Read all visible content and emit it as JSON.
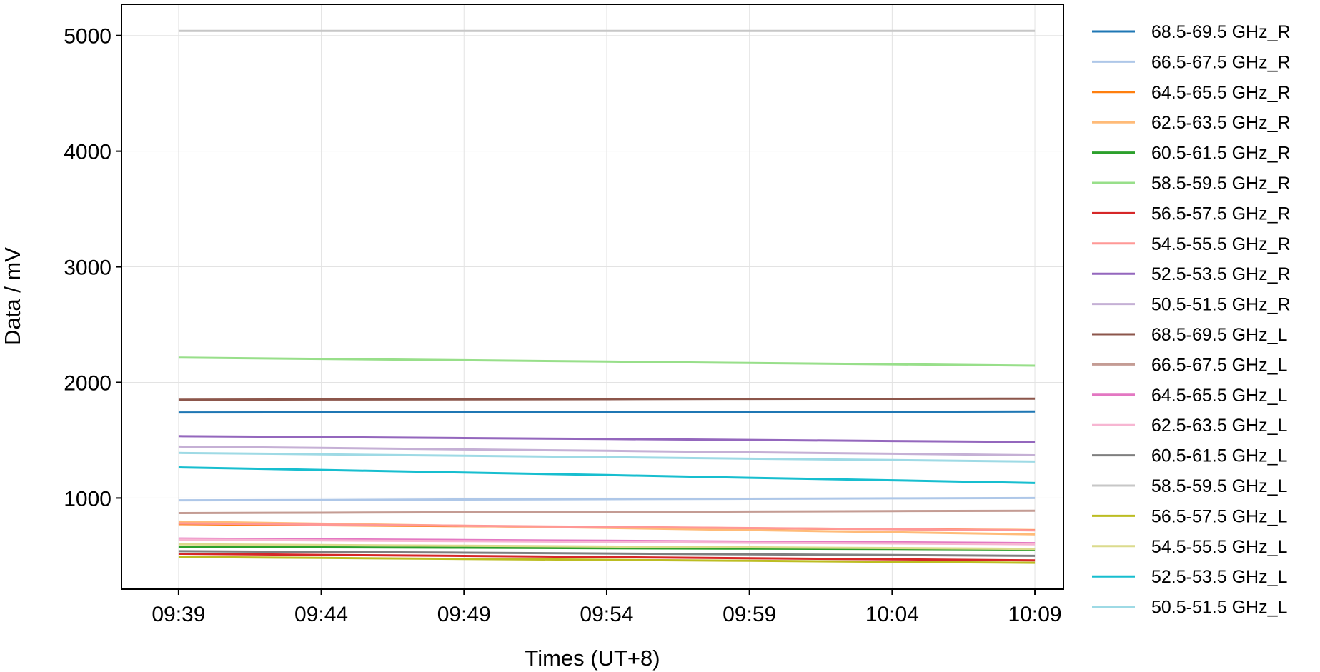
{
  "chart_data": {
    "type": "line",
    "xlabel": "Times (UT+8)",
    "ylabel": "Data / mV",
    "x": [
      "09:39",
      "09:44",
      "09:49",
      "09:54",
      "09:59",
      "10:04",
      "10:09"
    ],
    "xlim": [
      "09:37",
      "10:10"
    ],
    "xticks": [
      "09:39",
      "09:44",
      "09:49",
      "09:54",
      "09:59",
      "10:04",
      "10:09"
    ],
    "ylim": [
      212,
      5270
    ],
    "yticks": [
      1000,
      2000,
      3000,
      4000,
      5000
    ],
    "grid": true,
    "legend": "outside-right",
    "series": [
      {
        "name": "68.5-69.5 GHz_R",
        "color": "#1f77b4",
        "values": [
          1740,
          1741,
          1742,
          1743,
          1745,
          1746,
          1748
        ]
      },
      {
        "name": "66.5-67.5 GHz_R",
        "color": "#aec7e8",
        "values": [
          980,
          983,
          987,
          990,
          993,
          997,
          1000
        ]
      },
      {
        "name": "64.5-65.5 GHz_R",
        "color": "#ff7f0e",
        "values": [
          774,
          765,
          757,
          748,
          739,
          731,
          722
        ]
      },
      {
        "name": "62.5-63.5 GHz_R",
        "color": "#ffbb78",
        "values": [
          796,
          778,
          759,
          741,
          723,
          704,
          686
        ]
      },
      {
        "name": "60.5-61.5 GHz_R",
        "color": "#2ca02c",
        "values": [
          577,
          573,
          570,
          566,
          562,
          559,
          555
        ]
      },
      {
        "name": "58.5-59.5 GHz_R",
        "color": "#98df8a",
        "values": [
          2215,
          2203,
          2192,
          2180,
          2168,
          2157,
          2145
        ]
      },
      {
        "name": "56.5-57.5 GHz_R",
        "color": "#d62728",
        "values": [
          518,
          508,
          499,
          489,
          479,
          470,
          460
        ]
      },
      {
        "name": "54.5-55.5 GHz_R",
        "color": "#ff9896",
        "values": [
          780,
          770,
          760,
          750,
          740,
          730,
          720
        ]
      },
      {
        "name": "52.5-53.5 GHz_R",
        "color": "#9467bd",
        "values": [
          1535,
          1527,
          1518,
          1510,
          1502,
          1493,
          1485
        ]
      },
      {
        "name": "50.5-51.5 GHz_R",
        "color": "#c5b0d5",
        "values": [
          1445,
          1433,
          1420,
          1408,
          1395,
          1383,
          1370
        ]
      },
      {
        "name": "68.5-69.5 GHz_L",
        "color": "#8c564b",
        "values": [
          1850,
          1852,
          1853,
          1855,
          1857,
          1858,
          1860
        ]
      },
      {
        "name": "66.5-67.5 GHz_L",
        "color": "#c49c94",
        "values": [
          870,
          873,
          877,
          880,
          883,
          887,
          890
        ]
      },
      {
        "name": "64.5-65.5 GHz_L",
        "color": "#e377c2",
        "values": [
          650,
          643,
          637,
          630,
          623,
          617,
          610
        ]
      },
      {
        "name": "62.5-63.5 GHz_L",
        "color": "#f7b6d2",
        "values": [
          640,
          633,
          627,
          620,
          613,
          607,
          600
        ]
      },
      {
        "name": "60.5-61.5 GHz_L",
        "color": "#7f7f7f",
        "values": [
          540,
          533,
          527,
          520,
          513,
          507,
          500
        ]
      },
      {
        "name": "58.5-59.5 GHz_L",
        "color": "#c7c7c7",
        "values": [
          5040,
          5040,
          5040,
          5040,
          5040,
          5040,
          5040
        ]
      },
      {
        "name": "56.5-57.5 GHz_L",
        "color": "#bcbd22",
        "values": [
          490,
          482,
          473,
          465,
          457,
          448,
          440
        ]
      },
      {
        "name": "54.5-55.5 GHz_L",
        "color": "#dbdb8d",
        "values": [
          600,
          593,
          587,
          580,
          573,
          567,
          560
        ]
      },
      {
        "name": "52.5-53.5 GHz_L",
        "color": "#17becf",
        "values": [
          1265,
          1243,
          1220,
          1198,
          1175,
          1153,
          1130
        ]
      },
      {
        "name": "50.5-51.5 GHz_L",
        "color": "#9edae5",
        "values": [
          1390,
          1378,
          1365,
          1353,
          1340,
          1328,
          1315
        ]
      }
    ]
  }
}
